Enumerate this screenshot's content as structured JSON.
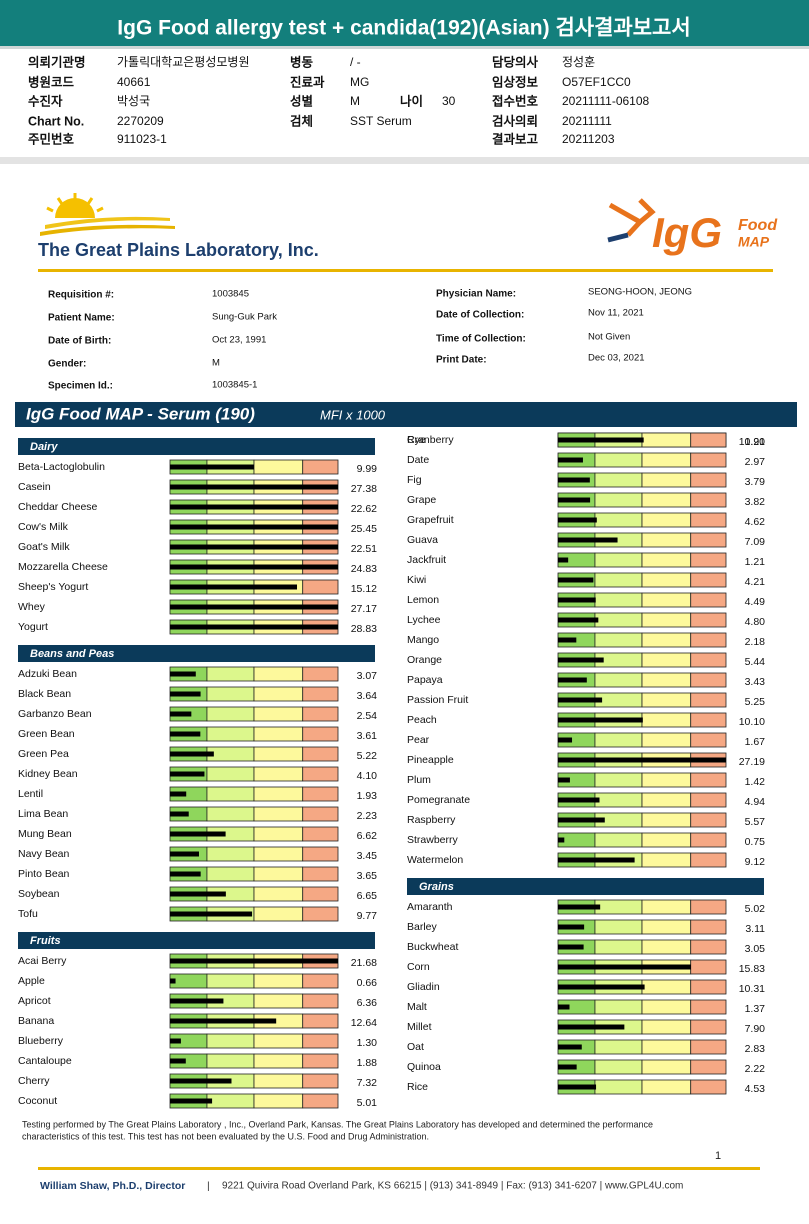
{
  "header": {
    "title": "IgG Food allergy test + candida(192)(Asian) 검사결과보고서"
  },
  "korean_info": {
    "columns": [
      [
        [
          "의뢰기관명",
          "가톨릭대학교은평성모병원"
        ],
        [
          "병원코드",
          "40661"
        ],
        [
          "수진자",
          "박성국"
        ],
        [
          "Chart No.",
          "2270209"
        ],
        [
          "주민번호",
          "911023-1"
        ]
      ],
      [
        [
          "병동",
          "/ -"
        ],
        [
          "진료과",
          "MG"
        ],
        [
          "성별",
          "M"
        ],
        [
          "검체",
          "SST Serum"
        ]
      ],
      [
        [
          "담당의사",
          "정성훈"
        ],
        [
          "임상정보",
          "O57EF1CC0"
        ],
        [
          "접수번호",
          "20211111-06108"
        ],
        [
          "검사의뢰",
          "20211111"
        ],
        [
          "결과보고",
          "20211203"
        ]
      ]
    ],
    "age": [
      "나이",
      "30"
    ]
  },
  "lab": {
    "name": "The Great Plains Laboratory, Inc.",
    "logo_main": "IgG",
    "logo_food": "Food",
    "logo_map": "MAP"
  },
  "patient": {
    "left": [
      [
        "Requisition #:",
        "1003845"
      ],
      [
        "Patient Name:",
        "Sung-Guk Park"
      ],
      [
        "Date of Birth:",
        "Oct 23, 1991"
      ],
      [
        "Gender:",
        "M"
      ],
      [
        "Specimen Id.:",
        "1003845-1"
      ]
    ],
    "right": [
      [
        "Physician Name:",
        "SEONG-HOON, JEONG"
      ],
      [
        "Date of Collection:",
        "Nov 11, 2021"
      ],
      [
        "Time of Collection:",
        "Not Given"
      ],
      [
        "Print Date:",
        "Dec 03, 2021"
      ]
    ]
  },
  "chart_data": {
    "type": "bar",
    "title": "IgG Food MAP - Serum (190)",
    "subtitle": "MFI x 1000",
    "xlim": [
      0,
      20
    ],
    "zone_bounds": [
      4.4,
      10,
      15.8
    ],
    "zone_colors": [
      "#8fd65c",
      "#dcf78c",
      "#fdf99c",
      "#f5a884"
    ],
    "color": "#000000",
    "groups": [
      {
        "name": "Dairy",
        "categories": [
          "Beta-Lactoglobulin",
          "Casein",
          "Cheddar Cheese",
          "Cow's Milk",
          "Goat's Milk",
          "Mozzarella Cheese",
          "Sheep's Yogurt",
          "Whey",
          "Yogurt"
        ],
        "values": [
          9.99,
          27.38,
          22.62,
          25.45,
          22.51,
          24.83,
          15.12,
          27.17,
          28.83
        ]
      },
      {
        "name": "Beans and Peas",
        "categories": [
          "Adzuki Bean",
          "Black Bean",
          "Garbanzo Bean",
          "Green Bean",
          "Green Pea",
          "Kidney Bean",
          "Lentil",
          "Lima Bean",
          "Mung Bean",
          "Navy Bean",
          "Pinto Bean",
          "Soybean",
          "Tofu"
        ],
        "values": [
          3.07,
          3.64,
          2.54,
          3.61,
          5.22,
          4.1,
          1.93,
          2.23,
          6.62,
          3.45,
          3.65,
          6.65,
          9.77
        ],
        "value_labels": [
          "3.07",
          "3.64",
          "2.54",
          "3.61",
          "5.22",
          "4.10",
          "1.93",
          "2.23",
          "6.62",
          "3.45",
          "3.65",
          "6.65",
          "9.77"
        ]
      },
      {
        "name": "Fruits",
        "categories": [
          "Acai Berry",
          "Apple",
          "Apricot",
          "Banana",
          "Blueberry",
          "Cantaloupe",
          "Cherry",
          "Coconut",
          "Cranberry",
          "Date",
          "Fig",
          "Grape",
          "Grapefruit",
          "Guava",
          "Jackfruit",
          "Kiwi",
          "Lemon",
          "Lychee",
          "Mango",
          "Orange",
          "Papaya",
          "Passion Fruit",
          "Peach",
          "Pear",
          "Pineapple",
          "Plum",
          "Pomegranate",
          "Raspberry",
          "Strawberry",
          "Watermelon"
        ],
        "values": [
          21.68,
          0.66,
          6.36,
          12.64,
          1.3,
          1.88,
          7.32,
          5.01,
          1.91,
          2.97,
          3.79,
          3.82,
          4.62,
          7.09,
          1.21,
          4.21,
          4.49,
          4.8,
          2.18,
          5.44,
          3.43,
          5.25,
          10.1,
          1.67,
          27.19,
          1.42,
          4.94,
          5.57,
          0.75,
          9.12
        ],
        "value_labels": [
          "21.68",
          "0.66",
          "6.36",
          "12.64",
          "1.30",
          "1.88",
          "7.32",
          "5.01",
          "1.91",
          "2.97",
          "3.79",
          "3.82",
          "4.62",
          "7.09",
          "1.21",
          "4.21",
          "4.49",
          "4.80",
          "2.18",
          "5.44",
          "3.43",
          "5.25",
          "10.10",
          "1.67",
          "27.19",
          "1.42",
          "4.94",
          "5.57",
          "0.75",
          "9.12"
        ]
      },
      {
        "name": "Grains",
        "categories": [
          "Amaranth",
          "Barley",
          "Buckwheat",
          "Corn",
          "Gliadin",
          "Malt",
          "Millet",
          "Oat",
          "Quinoa",
          "Rice",
          "Rye"
        ],
        "values": [
          5.02,
          3.11,
          3.05,
          15.83,
          10.31,
          1.37,
          7.9,
          2.83,
          2.22,
          4.53,
          10.2
        ],
        "value_labels": [
          "5.02",
          "3.11",
          "3.05",
          "15.83",
          "10.31",
          "1.37",
          "7.90",
          "2.83",
          "2.22",
          "4.53",
          "10.20"
        ]
      }
    ]
  },
  "footer": {
    "disclaimer": [
      "Testing performed by The Great Plains Laboratory , Inc., Overland Park, Kansas.  The Great Plains Laboratory has developed and determined the performance",
      "characteristics of this test.  This test has not been evaluated by the U.S. Food and Drug Administration."
    ],
    "page": "1",
    "director": "William Shaw, Ph.D., Director",
    "separator": "|",
    "address": "9221 Quivira Road Overland Park, KS 66215 | (913) 341-8949 | Fax: (913) 341-6207 | www.GPL4U.com"
  }
}
